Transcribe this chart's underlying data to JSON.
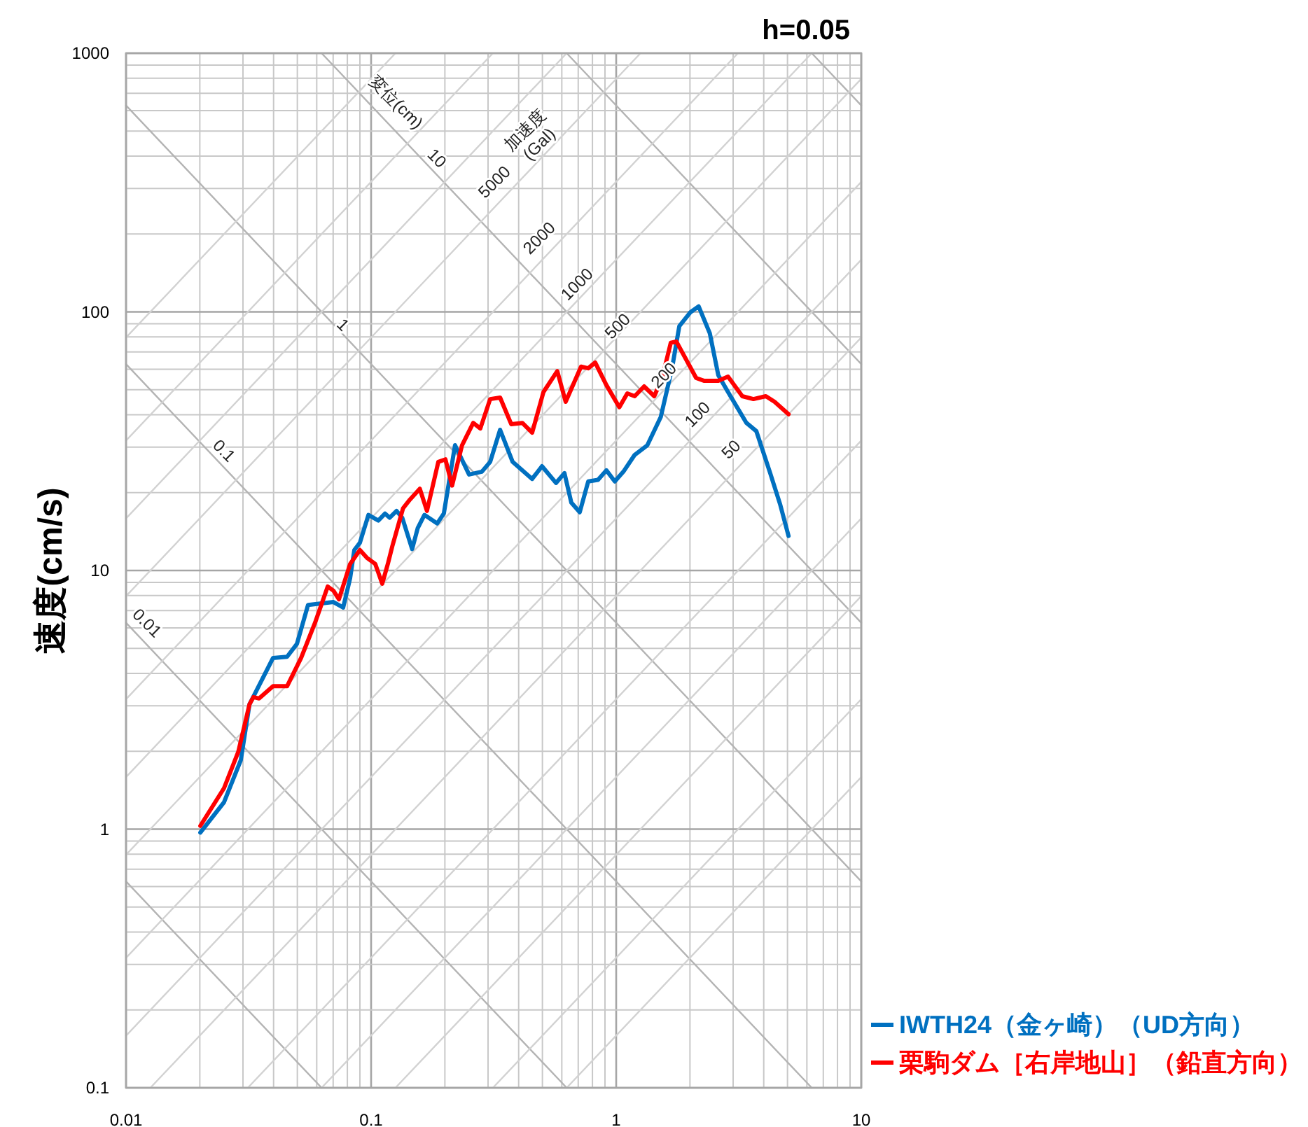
{
  "chart_data": {
    "type": "line",
    "title": "h=0.05",
    "ylabel": "速度(cm/s)",
    "log": "xy",
    "grid": true,
    "legend": "bottom right",
    "xlim": [
      0.01,
      10
    ],
    "ylim": [
      0.1,
      1000
    ],
    "xticks": [
      0.01,
      0.1,
      1,
      10
    ],
    "yticks": [
      0.1,
      1,
      10,
      100,
      1000
    ],
    "annotations": [
      "変位(cm)",
      "10",
      "1",
      "0.1",
      "0.01",
      "加速度\n(Gal)",
      "5000",
      "2000",
      "1000",
      "500",
      "200",
      "100",
      "50"
    ],
    "series": [
      {
        "color": "#b4b4b4",
        "x": [
          0.01,
          0.0628
        ],
        "values": [
          0.628,
          0.1
        ]
      },
      {
        "color": "#b4b4b4",
        "x": [
          0.01,
          0.628
        ],
        "values": [
          6.28,
          0.1
        ]
      },
      {
        "color": "#b4b4b4",
        "x": [
          0.01,
          6.28
        ],
        "values": [
          62.8,
          0.1
        ]
      },
      {
        "color": "#b4b4b4",
        "x": [
          0.01,
          10
        ],
        "values": [
          628,
          0.628
        ]
      },
      {
        "color": "#b4b4b4",
        "x": [
          0.0628,
          10
        ],
        "values": [
          1000,
          6.28
        ]
      },
      {
        "color": "#b4b4b4",
        "x": [
          0.628,
          10
        ],
        "values": [
          1000,
          62.8
        ]
      },
      {
        "color": "#b4b4b4",
        "x": [
          6.28,
          10
        ],
        "values": [
          1000,
          628
        ]
      },
      {
        "color": "#d2d2d2",
        "x": [
          0.628,
          10
        ],
        "values": [
          0.1,
          1.59
        ]
      },
      {
        "color": "#d2d2d2",
        "x": [
          0.314,
          10
        ],
        "values": [
          0.1,
          3.18
        ]
      },
      {
        "color": "#d2d2d2",
        "x": [
          0.1257,
          10
        ],
        "values": [
          0.1,
          7.96
        ]
      },
      {
        "color": "#d2d2d2",
        "x": [
          0.0628,
          10
        ],
        "values": [
          0.1,
          15.9
        ]
      },
      {
        "color": "#d2d2d2",
        "x": [
          0.0314,
          10
        ],
        "values": [
          0.1,
          31.8
        ]
      },
      {
        "color": "#d2d2d2",
        "x": [
          0.01257,
          10
        ],
        "values": [
          0.1,
          79.6
        ]
      },
      {
        "color": "#d2d2d2",
        "x": [
          0.01,
          10
        ],
        "values": [
          0.159,
          159
        ]
      },
      {
        "color": "#d2d2d2",
        "x": [
          0.01,
          10
        ],
        "values": [
          0.318,
          318
        ]
      },
      {
        "color": "#d2d2d2",
        "x": [
          0.01,
          10
        ],
        "values": [
          0.796,
          796
        ]
      },
      {
        "color": "#d2d2d2",
        "x": [
          0.01,
          6.28
        ],
        "values": [
          1.59,
          1000
        ]
      },
      {
        "color": "#d2d2d2",
        "x": [
          0.01,
          3.14
        ],
        "values": [
          3.18,
          1000
        ]
      },
      {
        "color": "#d2d2d2",
        "x": [
          0.01,
          1.257
        ],
        "values": [
          7.96,
          1000
        ]
      },
      {
        "color": "#d2d2d2",
        "x": [
          0.01,
          0.628
        ],
        "values": [
          15.9,
          1000
        ]
      },
      {
        "color": "#d2d2d2",
        "x": [
          0.01,
          0.314
        ],
        "values": [
          31.8,
          1000
        ]
      },
      {
        "color": "#d2d2d2",
        "x": [
          0.01,
          0.1257
        ],
        "values": [
          79.6,
          1000
        ]
      },
      {
        "name": "IWTH24（金ヶ崎）（UD方向）",
        "color": "#0070c0",
        "x": [
          0.0201,
          0.0251,
          0.0294,
          0.0319,
          0.0398,
          0.0454,
          0.0498,
          0.0553,
          0.0702,
          0.0769,
          0.0821,
          0.0854,
          0.09,
          0.0975,
          0.107,
          0.114,
          0.119,
          0.127,
          0.134,
          0.147,
          0.155,
          0.165,
          0.186,
          0.198,
          0.22,
          0.251,
          0.283,
          0.306,
          0.336,
          0.378,
          0.454,
          0.498,
          0.568,
          0.615,
          0.656,
          0.71,
          0.769,
          0.843,
          0.912,
          0.987,
          1.07,
          1.19,
          1.34,
          1.52,
          1.69,
          1.81,
          2.01,
          2.17,
          2.41,
          2.61,
          2.86,
          3.4,
          3.73,
          4.25,
          4.66,
          5.05
        ],
        "values": [
          0.97,
          1.27,
          1.85,
          3.04,
          4.59,
          4.64,
          5.2,
          7.36,
          7.55,
          7.19,
          9.33,
          12,
          12.8,
          16.4,
          15.6,
          16.6,
          16,
          17,
          16,
          12.1,
          14.6,
          16.4,
          15.2,
          16.6,
          30.5,
          23.5,
          24.1,
          26.3,
          35,
          26.3,
          22.6,
          25.3,
          21.8,
          23.8,
          18.3,
          16.8,
          22.1,
          22.4,
          24.4,
          22.1,
          24.1,
          28,
          30.5,
          39.2,
          60.5,
          88.1,
          99.7,
          105,
          82.6,
          56.9,
          49,
          37.2,
          34.6,
          23.8,
          18.1,
          13.6
        ]
      },
      {
        "name": "栗駒ダム［右岸地山］（鉛直方向）",
        "color": "#ff0000",
        "x": [
          0.0201,
          0.0251,
          0.0287,
          0.0319,
          0.0331,
          0.0349,
          0.0398,
          0.0454,
          0.0518,
          0.059,
          0.0665,
          0.0702,
          0.0739,
          0.0821,
          0.09,
          0.0961,
          0.104,
          0.111,
          0.117,
          0.122,
          0.135,
          0.144,
          0.158,
          0.169,
          0.188,
          0.201,
          0.214,
          0.235,
          0.261,
          0.279,
          0.306,
          0.336,
          0.373,
          0.414,
          0.454,
          0.505,
          0.575,
          0.622,
          0.719,
          0.769,
          0.821,
          0.912,
          1.03,
          1.11,
          1.19,
          1.3,
          1.43,
          1.54,
          1.67,
          1.76,
          2.12,
          2.29,
          2.61,
          2.86,
          3.27,
          3.63,
          4.08,
          4.43,
          5.05
        ],
        "values": [
          1.03,
          1.44,
          1.99,
          3.04,
          3.24,
          3.2,
          3.57,
          3.57,
          4.59,
          6.27,
          8.67,
          8.35,
          7.74,
          10.6,
          12,
          11.2,
          10.6,
          8.89,
          10.6,
          12.4,
          17.4,
          18.8,
          20.7,
          17,
          26.3,
          26.9,
          21.3,
          30.5,
          37.2,
          35.4,
          46,
          46.6,
          36.8,
          37.2,
          34.1,
          49,
          59,
          44.9,
          61.4,
          60.5,
          63.7,
          52.1,
          42.8,
          48.4,
          47.2,
          51.5,
          47.2,
          55.5,
          75.9,
          76.8,
          55.5,
          54.1,
          54.1,
          56.2,
          47.2,
          46,
          47.2,
          44.9,
          40.2
        ]
      }
    ]
  }
}
